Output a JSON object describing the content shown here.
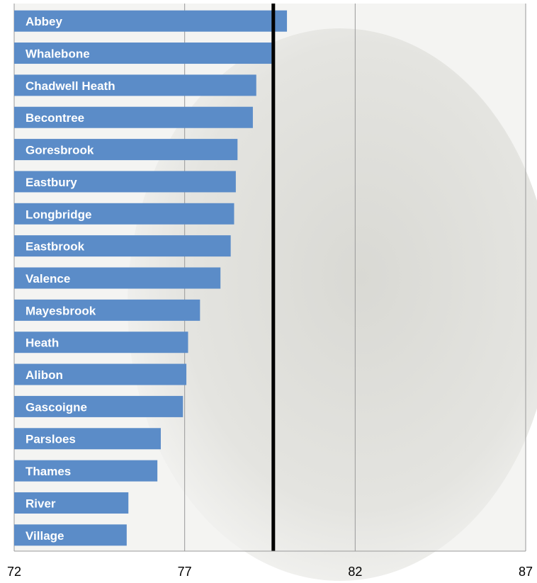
{
  "chart_data": {
    "type": "bar",
    "orientation": "horizontal",
    "categories": [
      "Abbey",
      "Whalebone",
      "Chadwell Heath",
      "Becontree",
      "Goresbrook",
      "Eastbury",
      "Longbridge",
      "Eastbrook",
      "Valence",
      "Mayesbrook",
      "Heath",
      "Alibon",
      "Gascoigne",
      "Parsloes",
      "Thames",
      "River",
      "Village"
    ],
    "values": [
      80.0,
      79.55,
      79.1,
      79.0,
      78.55,
      78.5,
      78.45,
      78.35,
      78.05,
      77.45,
      77.1,
      77.05,
      76.95,
      76.3,
      76.2,
      75.35,
      75.3
    ],
    "color": "#5b8cc8",
    "reference_line": 79.6,
    "xlim": [
      72,
      87
    ],
    "xticks": [
      72,
      77,
      82,
      87
    ],
    "grid": true
  }
}
